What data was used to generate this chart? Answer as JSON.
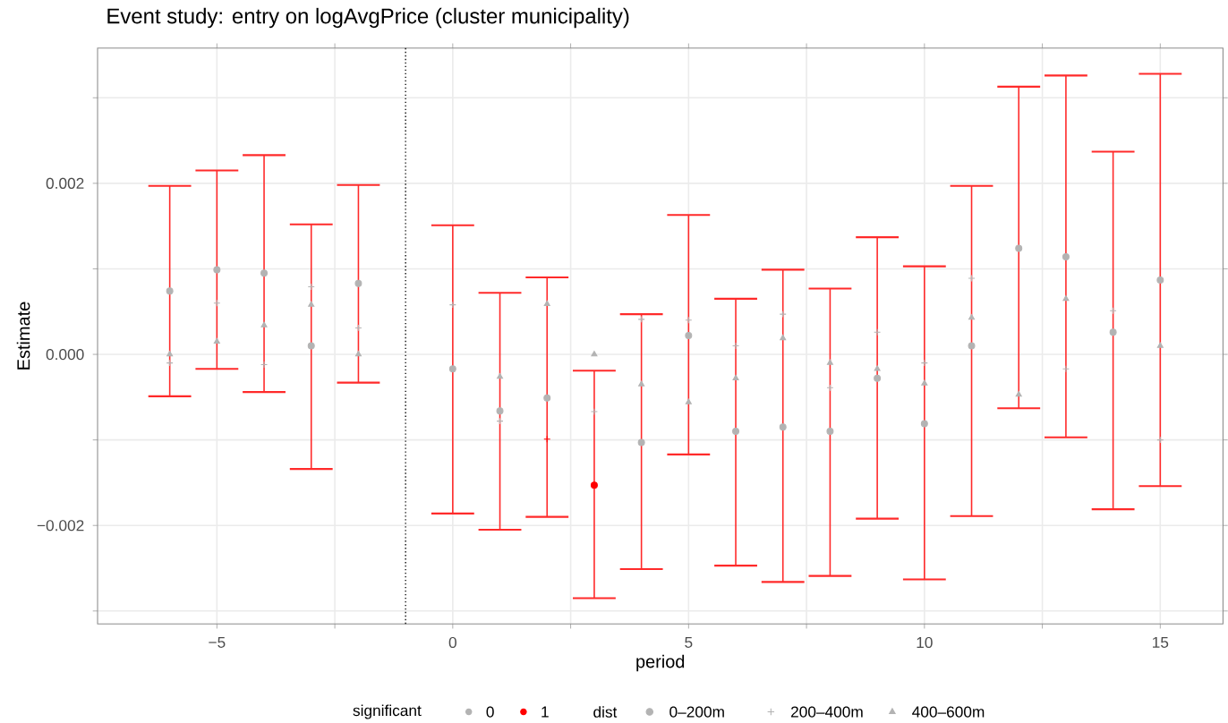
{
  "chart_data": {
    "type": "scatter",
    "title": "Event study: entry on logAvgPrice (cluster municipality)",
    "xlabel": "period",
    "ylabel": "Estimate",
    "x": [
      -6,
      -5,
      -4,
      -3,
      -2,
      0,
      1,
      2,
      3,
      4,
      5,
      6,
      7,
      8,
      9,
      10,
      11,
      12,
      13,
      14,
      15
    ],
    "xlim": [
      -7.53,
      16.33
    ],
    "ylim": [
      -0.00315,
      0.00358
    ],
    "xticks": [
      {
        "value": -5,
        "label": "−5"
      },
      {
        "value": -2.5,
        "label": null
      },
      0,
      {
        "value": 2.5,
        "label": null
      },
      5,
      {
        "value": 7.5,
        "label": null
      },
      10,
      {
        "value": 12.5,
        "label": null
      },
      15
    ],
    "yticks": [
      {
        "value": -0.003,
        "label": null
      },
      {
        "value": -0.002,
        "label": "−0.002"
      },
      {
        "value": -0.001,
        "label": null
      },
      {
        "value": 0,
        "label": "0.000"
      },
      {
        "value": 0.001,
        "label": null
      },
      {
        "value": 0.002,
        "label": "0.002"
      },
      {
        "value": 0.003,
        "label": null
      }
    ],
    "grid": true,
    "legend": "bottom",
    "legend_title": "dist",
    "annotations": [
      "significant",
      "0",
      "1"
    ],
    "ref_lines": [
      {
        "axis": "x",
        "value": -1,
        "line_style": "dotted",
        "color": "#000000"
      }
    ],
    "series": [
      {
        "name": "0–200m",
        "marker": "circle",
        "color": "#ff2a2a",
        "colors": [
          "#b3b3b3",
          "#b3b3b3",
          "#b3b3b3",
          "#b3b3b3",
          "#b3b3b3",
          "#b3b3b3",
          "#b3b3b3",
          "#b3b3b3",
          "#ff0000",
          "#b3b3b3",
          "#b3b3b3",
          "#b3b3b3",
          "#b3b3b3",
          "#b3b3b3",
          "#b3b3b3",
          "#b3b3b3",
          "#b3b3b3",
          "#b3b3b3",
          "#b3b3b3",
          "#b3b3b3",
          "#b3b3b3"
        ],
        "values": [
          0.00074,
          0.00099,
          0.00095,
          0.0001,
          0.00083,
          -0.00017,
          -0.00066,
          -0.00051,
          -0.00153,
          -0.00103,
          0.00022,
          -0.0009,
          -0.00085,
          -0.0009,
          -0.00028,
          -0.00081,
          0.0001,
          0.00124,
          0.00114,
          0.00026,
          0.00087
        ],
        "errors": [
          [
            -0.00049,
            0.00197
          ],
          [
            -0.00017,
            0.00215
          ],
          [
            -0.00044,
            0.00233
          ],
          [
            -0.00134,
            0.00152
          ],
          [
            -0.00033,
            0.00198
          ],
          [
            -0.00186,
            0.00151
          ],
          [
            -0.00205,
            0.00072
          ],
          [
            -0.0019,
            0.0009
          ],
          [
            -0.00285,
            -0.00019
          ],
          [
            -0.00251,
            0.00047
          ],
          [
            -0.00117,
            0.00163
          ],
          [
            -0.00247,
            0.00065
          ],
          [
            -0.00266,
            0.00099
          ],
          [
            -0.00259,
            0.00077
          ],
          [
            -0.00192,
            0.00137
          ],
          [
            -0.00263,
            0.00103
          ],
          [
            -0.00189,
            0.00197
          ],
          [
            -0.00063,
            0.00313
          ],
          [
            -0.00097,
            0.00326
          ],
          [
            -0.00181,
            0.00237
          ],
          [
            -0.00154,
            0.00328
          ]
        ]
      },
      {
        "name": "200–400m",
        "marker": "cross",
        "colors": [
          "#b3b3b3",
          "#b3b3b3",
          "#b3b3b3",
          "#b3b3b3",
          "#b3b3b3",
          "#b3b3b3",
          "#b3b3b3",
          "#ff0000",
          "#b3b3b3",
          "#b3b3b3",
          "#b3b3b3",
          "#b3b3b3",
          "#b3b3b3",
          "#b3b3b3",
          "#b3b3b3",
          "#b3b3b3",
          "#b3b3b3",
          "#b3b3b3",
          "#b3b3b3",
          "#b3b3b3",
          "#b3b3b3"
        ],
        "values": [
          -0.0001,
          0.0006,
          -0.00012,
          0.00079,
          0.00031,
          0.00058,
          -0.00078,
          -0.00099,
          -0.00067,
          0.00041,
          0.0004,
          0.0001,
          0.00047,
          -0.00039,
          0.00026,
          -0.0001,
          0.00089,
          null,
          -0.00017,
          0.00051,
          -0.001
        ]
      },
      {
        "name": "400–600m",
        "marker": "triangle",
        "colors": [
          "#b3b3b3",
          "#b3b3b3",
          "#b3b3b3",
          "#b3b3b3",
          "#b3b3b3",
          "#b3b3b3",
          "#b3b3b3",
          "#b3b3b3",
          "#b3b3b3",
          "#b3b3b3",
          "#b3b3b3",
          "#b3b3b3",
          "#b3b3b3",
          "#b3b3b3",
          "#b3b3b3",
          "#b3b3b3",
          "#b3b3b3",
          "#b3b3b3",
          "#b3b3b3",
          "#b3b3b3",
          "#b3b3b3"
        ],
        "values": [
          0.0,
          0.00015,
          0.00034,
          0.00058,
          0.0,
          null,
          -0.00026,
          0.00059,
          0.0,
          -0.00035,
          -0.00056,
          -0.00028,
          0.00019,
          -0.0001,
          -0.00017,
          -0.00034,
          0.00043,
          -0.00047,
          0.00065,
          null,
          0.0001
        ]
      }
    ]
  }
}
